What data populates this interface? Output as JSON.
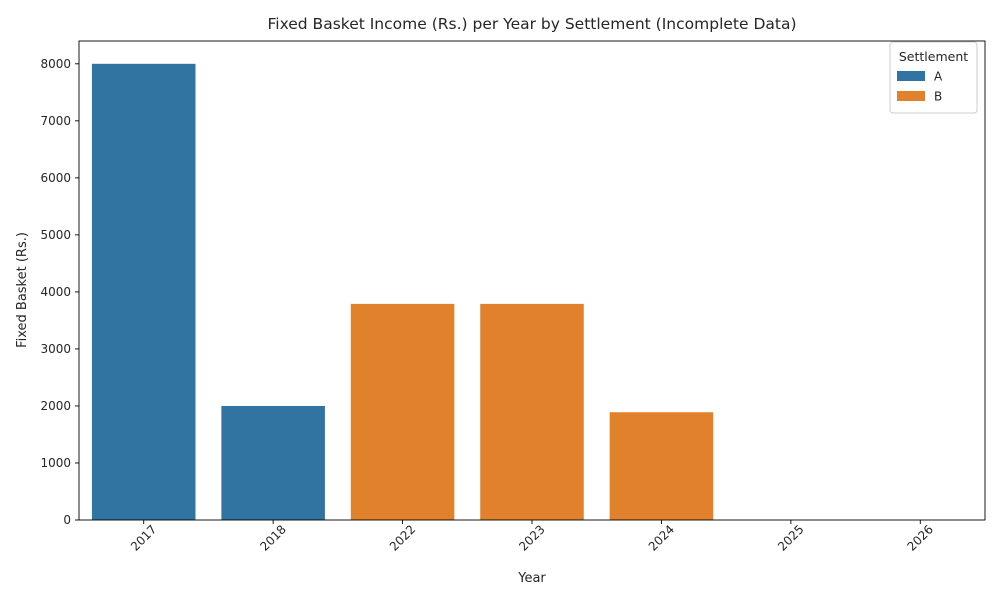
{
  "chart_data": {
    "type": "bar",
    "title": "Fixed Basket Income (Rs.) per Year by Settlement (Incomplete Data)",
    "xlabel": "Year",
    "ylabel": "Fixed Basket (Rs.)",
    "categories": [
      "2017",
      "2018",
      "2022",
      "2023",
      "2024",
      "2025",
      "2026"
    ],
    "ylim": [
      0,
      8400
    ],
    "yticks": [
      0,
      1000,
      2000,
      3000,
      4000,
      5000,
      6000,
      7000,
      8000
    ],
    "grid": false,
    "legend": {
      "title": "Settlement",
      "position": "top-right"
    },
    "series": [
      {
        "name": "A",
        "color": "#3274a1",
        "values": [
          8000,
          2000,
          null,
          null,
          null,
          null,
          null
        ]
      },
      {
        "name": "B",
        "color": "#e1812c",
        "values": [
          null,
          null,
          3790,
          3790,
          1890,
          null,
          null
        ]
      }
    ]
  }
}
